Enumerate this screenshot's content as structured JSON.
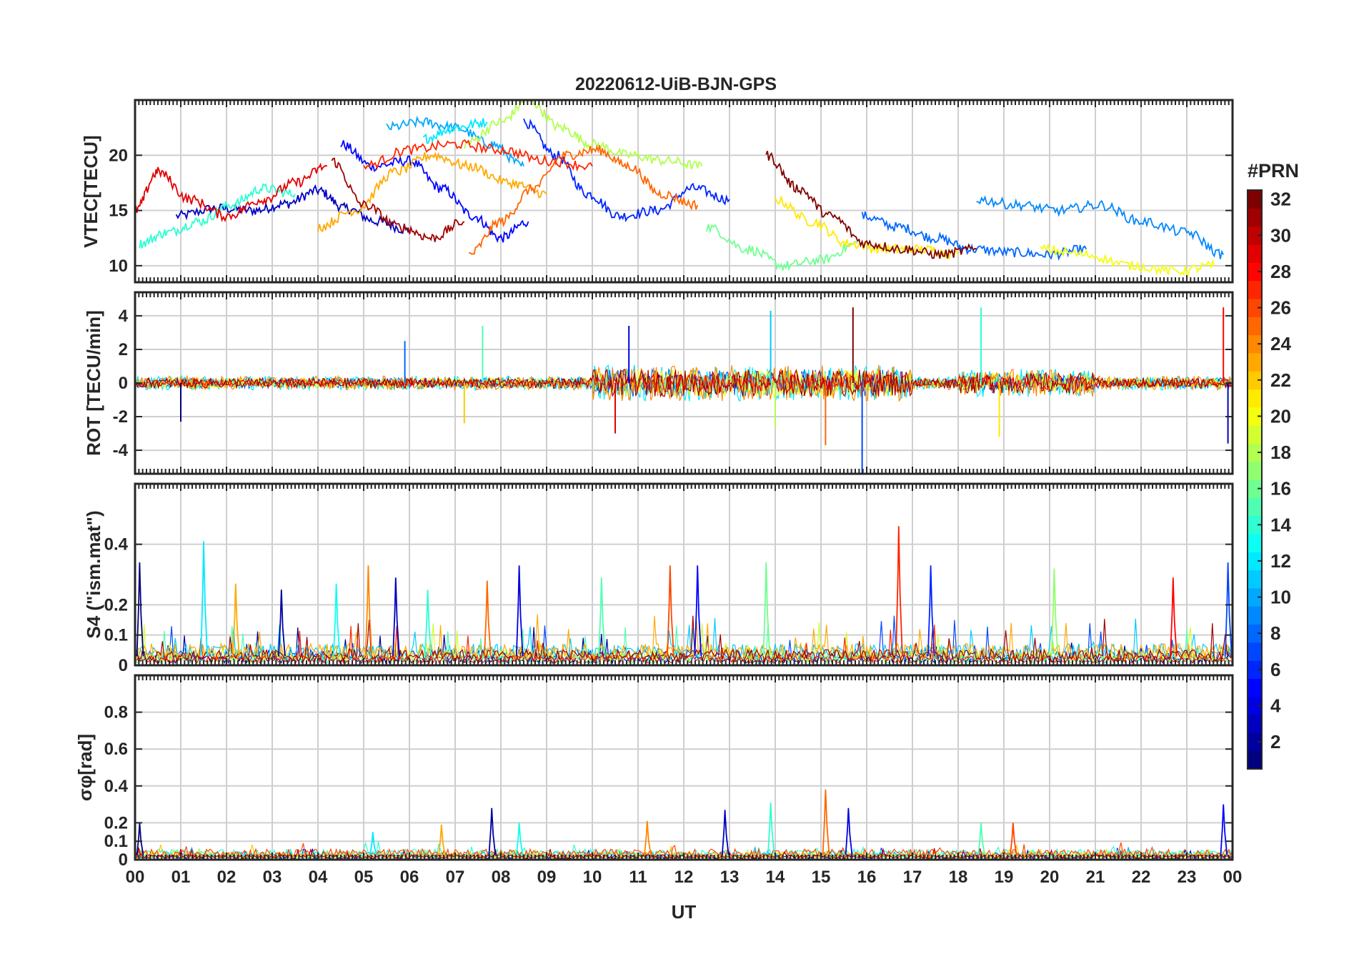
{
  "chart_data": [
    {
      "type": "line",
      "title": "20220612-UiB-BJN-GPS",
      "ylabel": "VTEC[TECU]",
      "xlabel": "",
      "xlim": [
        0,
        24
      ],
      "ylim": [
        8.5,
        25
      ],
      "yticks": [
        10,
        15,
        20
      ],
      "grid": true,
      "series_note": "One trace per GPS PRN (1-32), coloured by PRN",
      "series": [
        {
          "name": "PRN 03",
          "x": [
            0.9,
            1.8,
            2.6,
            3.3,
            4.0,
            4.6,
            5.3,
            6.0
          ],
          "values": [
            14.5,
            15.2,
            15.0,
            15.6,
            16.8,
            15.2,
            14.0,
            13.2
          ]
        },
        {
          "name": "PRN 05",
          "x": [
            4.5,
            5.2,
            6.0,
            6.7,
            7.4,
            8.0,
            8.6
          ],
          "values": [
            21.0,
            19.0,
            19.5,
            17.0,
            14.5,
            12.5,
            14.0
          ]
        },
        {
          "name": "PRN 06",
          "x": [
            8.5,
            9.2,
            9.9,
            10.6,
            11.4,
            12.2,
            13.0
          ],
          "values": [
            23.0,
            20.0,
            16.5,
            14.5,
            15.0,
            17.0,
            16.0
          ]
        },
        {
          "name": "PRN 08",
          "x": [
            15.9,
            16.7,
            17.5,
            18.3,
            19.2,
            20.0,
            20.8
          ],
          "values": [
            14.5,
            13.5,
            12.5,
            11.5,
            11.2,
            11.0,
            11.5
          ]
        },
        {
          "name": "PRN 10",
          "x": [
            5.5,
            6.3,
            7.0,
            7.8,
            8.5
          ],
          "values": [
            22.5,
            23.0,
            22.5,
            21.0,
            19.0
          ]
        },
        {
          "name": "PRN 12",
          "x": [
            6.3,
            7.0,
            7.7
          ],
          "values": [
            21.5,
            22.5,
            23.0
          ]
        },
        {
          "name": "PRN 14",
          "x": [
            0.1,
            0.7,
            1.4,
            2.1,
            2.8,
            3.5
          ],
          "values": [
            12.0,
            13.0,
            14.0,
            15.5,
            17.0,
            16.5
          ]
        },
        {
          "name": "PRN 16",
          "x": [
            12.5,
            13.4,
            14.2,
            15.0,
            15.8
          ],
          "values": [
            13.5,
            11.5,
            10.0,
            10.5,
            12.0
          ]
        },
        {
          "name": "PRN 18",
          "x": [
            7.2,
            8.0,
            8.6,
            9.3,
            10.0,
            10.8,
            11.6,
            12.4
          ],
          "values": [
            21.0,
            23.0,
            25.0,
            22.5,
            21.0,
            20.0,
            19.5,
            19.0
          ]
        },
        {
          "name": "PRN 21",
          "x": [
            14.0,
            14.8,
            15.6,
            16.4,
            17.2,
            18.0
          ],
          "values": [
            16.0,
            14.0,
            12.0,
            11.5,
            11.5,
            11.0
          ]
        },
        {
          "name": "PRN 23",
          "x": [
            4.0,
            4.8,
            5.7,
            6.5,
            7.3,
            8.2,
            9.0
          ],
          "values": [
            13.5,
            15.0,
            18.5,
            20.0,
            19.0,
            17.5,
            16.5
          ]
        },
        {
          "name": "PRN 25",
          "x": [
            7.3,
            8.0,
            8.7,
            9.4,
            10.1,
            10.8,
            11.5,
            12.3
          ],
          "values": [
            11.0,
            14.0,
            17.0,
            20.0,
            20.5,
            19.0,
            16.5,
            15.5
          ]
        },
        {
          "name": "PRN 27",
          "x": [
            5.0,
            6.0,
            7.0,
            8.0,
            9.0,
            10.0
          ],
          "values": [
            19.0,
            20.5,
            21.0,
            20.5,
            19.5,
            19.0
          ]
        },
        {
          "name": "PRN 29",
          "x": [
            0.0,
            0.5,
            1.2,
            2.0,
            2.8,
            3.5,
            4.2
          ],
          "values": [
            15.0,
            18.5,
            16.0,
            14.5,
            16.0,
            17.5,
            19.0
          ]
        },
        {
          "name": "PRN 31",
          "x": [
            4.3,
            5.0,
            5.8,
            6.5,
            7.2
          ],
          "values": [
            19.5,
            15.5,
            13.5,
            12.5,
            14.0
          ]
        },
        {
          "name": "PRN 32",
          "x": [
            13.8,
            14.5,
            15.2,
            16.0,
            16.8,
            17.6,
            18.4
          ],
          "values": [
            20.0,
            17.0,
            14.5,
            12.0,
            11.5,
            11.0,
            11.5
          ]
        },
        {
          "name": "PRN 09",
          "x": [
            18.4,
            19.3,
            20.2,
            21.1,
            22.0,
            23.0,
            23.8
          ],
          "values": [
            16.0,
            15.5,
            15.0,
            15.5,
            14.0,
            13.0,
            11.0
          ]
        },
        {
          "name": "PRN 20",
          "x": [
            19.8,
            20.8,
            21.8,
            22.8,
            23.6
          ],
          "values": [
            11.5,
            11.0,
            10.0,
            9.5,
            10.0
          ]
        }
      ]
    },
    {
      "type": "line",
      "title": "",
      "ylabel": "ROT [TECU/min]",
      "xlabel": "",
      "xlim": [
        0,
        24
      ],
      "ylim": [
        -5.4,
        5.4
      ],
      "yticks": [
        -4,
        -2,
        0,
        2,
        4
      ],
      "grid": true,
      "peaks": [
        {
          "x": 1.0,
          "value": -2.3
        },
        {
          "x": 5.9,
          "value": 2.5
        },
        {
          "x": 7.6,
          "value": 3.4
        },
        {
          "x": 7.2,
          "value": -2.4
        },
        {
          "x": 10.5,
          "value": -3.0
        },
        {
          "x": 10.8,
          "value": 3.4
        },
        {
          "x": 13.9,
          "value": 4.3
        },
        {
          "x": 14.0,
          "value": -2.6
        },
        {
          "x": 15.1,
          "value": -3.7
        },
        {
          "x": 15.7,
          "value": 4.5
        },
        {
          "x": 15.9,
          "value": -5.4
        },
        {
          "x": 18.5,
          "value": 4.5
        },
        {
          "x": 18.9,
          "value": -3.2
        },
        {
          "x": 23.8,
          "value": 4.5
        },
        {
          "x": 23.9,
          "value": -3.6
        }
      ]
    },
    {
      "type": "line",
      "title": "",
      "ylabel": "S4 (\"ism.mat\")",
      "xlabel": "",
      "xlim": [
        0,
        24
      ],
      "ylim": [
        0,
        0.6
      ],
      "yticks": [
        0,
        0.1,
        0.2,
        0.4
      ],
      "grid": true,
      "peaks": [
        {
          "x": 0.1,
          "value": 0.34
        },
        {
          "x": 1.5,
          "value": 0.41
        },
        {
          "x": 2.2,
          "value": 0.27
        },
        {
          "x": 3.2,
          "value": 0.25
        },
        {
          "x": 4.4,
          "value": 0.27
        },
        {
          "x": 5.1,
          "value": 0.33
        },
        {
          "x": 5.7,
          "value": 0.29
        },
        {
          "x": 6.4,
          "value": 0.25
        },
        {
          "x": 7.7,
          "value": 0.28
        },
        {
          "x": 8.4,
          "value": 0.33
        },
        {
          "x": 10.2,
          "value": 0.29
        },
        {
          "x": 11.7,
          "value": 0.33
        },
        {
          "x": 12.3,
          "value": 0.33
        },
        {
          "x": 13.8,
          "value": 0.34
        },
        {
          "x": 16.7,
          "value": 0.46
        },
        {
          "x": 17.4,
          "value": 0.33
        },
        {
          "x": 20.1,
          "value": 0.32
        },
        {
          "x": 22.7,
          "value": 0.29
        },
        {
          "x": 23.9,
          "value": 0.34
        }
      ]
    },
    {
      "type": "line",
      "title": "",
      "ylabel": "σφ[rad]",
      "xlabel": "UT",
      "xlim": [
        0,
        24
      ],
      "ylim": [
        0,
        1.0
      ],
      "yticks": [
        0,
        0.1,
        0.2,
        0.4,
        0.6,
        0.8
      ],
      "xticks": [
        "00",
        "01",
        "02",
        "03",
        "04",
        "05",
        "06",
        "07",
        "08",
        "09",
        "10",
        "11",
        "12",
        "13",
        "14",
        "15",
        "16",
        "17",
        "18",
        "19",
        "20",
        "21",
        "22",
        "23",
        "00"
      ],
      "grid": true,
      "peaks": [
        {
          "x": 0.1,
          "value": 0.2
        },
        {
          "x": 5.2,
          "value": 0.15
        },
        {
          "x": 6.7,
          "value": 0.19
        },
        {
          "x": 7.8,
          "value": 0.28
        },
        {
          "x": 8.4,
          "value": 0.2
        },
        {
          "x": 11.2,
          "value": 0.21
        },
        {
          "x": 12.9,
          "value": 0.27
        },
        {
          "x": 13.9,
          "value": 0.31
        },
        {
          "x": 15.1,
          "value": 0.38
        },
        {
          "x": 15.6,
          "value": 0.28
        },
        {
          "x": 18.5,
          "value": 0.2
        },
        {
          "x": 19.2,
          "value": 0.2
        },
        {
          "x": 23.8,
          "value": 0.3
        }
      ]
    }
  ],
  "colorbar": {
    "label": "#PRN",
    "range": [
      1,
      32
    ],
    "ticks": [
      "2",
      "4",
      "6",
      "8",
      "10",
      "12",
      "14",
      "16",
      "18",
      "20",
      "22",
      "24",
      "26",
      "28",
      "30",
      "32"
    ],
    "colormap": "jet",
    "steps": 32
  },
  "colors": {
    "axes": "#262626",
    "grid": "#cfcfcf",
    "background": "#ffffff"
  }
}
